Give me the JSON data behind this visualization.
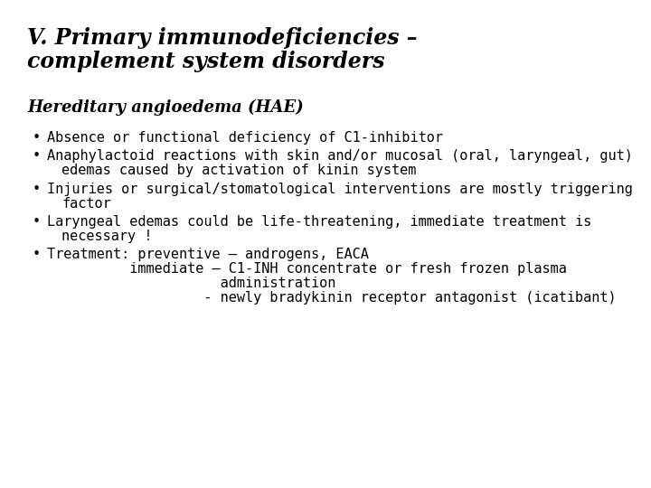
{
  "background_color": "#ffffff",
  "title_line1": "V. Primary immunodeficiencies –",
  "title_line2": "complement system disorders",
  "subtitle": "Hereditary angioedema (HAE)",
  "bullet1": "Absence or functional deficiency of C1-inhibitor",
  "bullet2a": "Anaphylactoid reactions with skin and/or mucosal (oral, laryngeal, gut)",
  "bullet2b": "edemas caused by activation of kinin system",
  "bullet3a": "Injuries or surgical/stomatological interventions are mostly triggering",
  "bullet3b": "factor",
  "bullet4a": "Laryngeal edemas could be life-threatening, immediate treatment is",
  "bullet4b": "necessary !",
  "bullet5a": "Treatment: preventive – androgens, EACA",
  "bullet5b": "          immediate – C1-INH concentrate or fresh frozen plasma",
  "bullet5c": "                     administration",
  "bullet5d": "                   - newly bradykinin receptor antagonist (icatibant)",
  "title_fontsize": 17,
  "subtitle_fontsize": 13,
  "body_fontsize": 11,
  "text_color": "#000000",
  "title_font": "DejaVu Serif",
  "body_font": "DejaVu Sans Mono"
}
